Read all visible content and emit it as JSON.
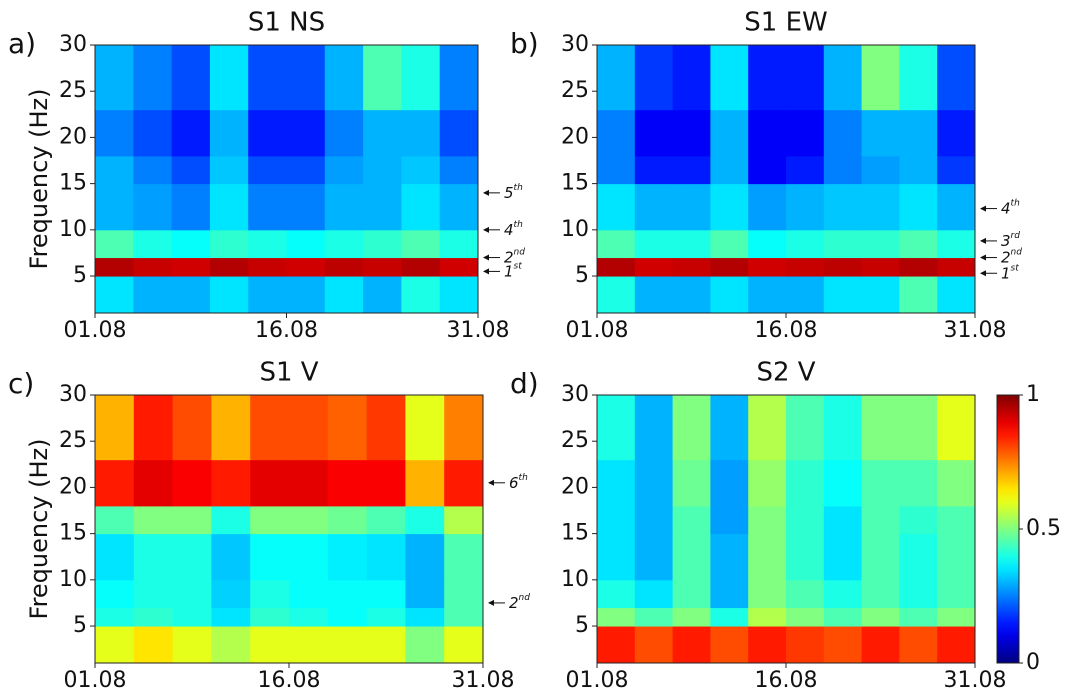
{
  "chart_data": [
    {
      "type": "heatmap",
      "label": "a)",
      "title": "S1 NS",
      "ylabel": "Frequency (Hz)",
      "xlim": [
        1,
        31
      ],
      "xticks": [
        {
          "value": 1,
          "label": "01.08"
        },
        {
          "value": 16,
          "label": "16.08"
        },
        {
          "value": 31,
          "label": "31.08"
        }
      ],
      "ylim": [
        1,
        30
      ],
      "yticks": [
        5,
        10,
        15,
        20,
        25,
        30
      ],
      "clim": [
        0,
        1
      ],
      "xbins": [
        1,
        4,
        7,
        10,
        13,
        16,
        19,
        22,
        25,
        28,
        31
      ],
      "ybins": [
        1,
        5,
        7,
        10,
        15,
        18,
        23,
        30
      ],
      "values": [
        [
          0.35,
          0.3,
          0.3,
          0.35,
          0.3,
          0.3,
          0.35,
          0.3,
          0.4,
          0.35
        ],
        [
          0.95,
          0.93,
          0.92,
          0.95,
          0.93,
          0.92,
          0.94,
          0.93,
          0.95,
          0.92
        ],
        [
          0.45,
          0.4,
          0.38,
          0.42,
          0.4,
          0.38,
          0.4,
          0.42,
          0.45,
          0.4
        ],
        [
          0.3,
          0.28,
          0.25,
          0.35,
          0.25,
          0.25,
          0.3,
          0.3,
          0.35,
          0.3
        ],
        [
          0.3,
          0.25,
          0.2,
          0.32,
          0.2,
          0.2,
          0.28,
          0.3,
          0.32,
          0.25
        ],
        [
          0.25,
          0.2,
          0.15,
          0.3,
          0.15,
          0.15,
          0.25,
          0.3,
          0.3,
          0.2
        ],
        [
          0.3,
          0.25,
          0.2,
          0.35,
          0.2,
          0.2,
          0.3,
          0.45,
          0.4,
          0.25
        ]
      ],
      "annotations": [
        {
          "text": "5",
          "sup": "th",
          "y": 14
        },
        {
          "text": "4",
          "sup": "th",
          "y": 10
        },
        {
          "text": "2",
          "sup": "nd",
          "y": 7
        },
        {
          "text": "1",
          "sup": "st",
          "y": 5.5
        }
      ]
    },
    {
      "type": "heatmap",
      "label": "b)",
      "title": "S1 EW",
      "xlim": [
        1,
        31
      ],
      "xticks": [
        {
          "value": 1,
          "label": "01.08"
        },
        {
          "value": 16,
          "label": "16.08"
        },
        {
          "value": 31,
          "label": "31.08"
        }
      ],
      "ylim": [
        1,
        30
      ],
      "yticks": [
        5,
        10,
        15,
        20,
        25,
        30
      ],
      "clim": [
        0,
        1
      ],
      "xbins": [
        1,
        4,
        7,
        10,
        13,
        16,
        19,
        22,
        25,
        28,
        31
      ],
      "ybins": [
        1,
        5,
        7,
        10,
        15,
        18,
        23,
        30
      ],
      "values": [
        [
          0.4,
          0.3,
          0.3,
          0.35,
          0.3,
          0.3,
          0.35,
          0.35,
          0.45,
          0.35
        ],
        [
          0.95,
          0.92,
          0.93,
          0.95,
          0.92,
          0.93,
          0.94,
          0.93,
          0.95,
          0.93
        ],
        [
          0.45,
          0.4,
          0.4,
          0.45,
          0.38,
          0.4,
          0.42,
          0.42,
          0.45,
          0.4
        ],
        [
          0.35,
          0.3,
          0.3,
          0.35,
          0.28,
          0.3,
          0.32,
          0.32,
          0.35,
          0.3
        ],
        [
          0.25,
          0.15,
          0.15,
          0.3,
          0.12,
          0.15,
          0.25,
          0.28,
          0.3,
          0.18
        ],
        [
          0.25,
          0.12,
          0.12,
          0.3,
          0.12,
          0.12,
          0.25,
          0.3,
          0.3,
          0.15
        ],
        [
          0.3,
          0.18,
          0.15,
          0.35,
          0.15,
          0.15,
          0.3,
          0.5,
          0.4,
          0.2
        ]
      ],
      "annotations": [
        {
          "text": "4",
          "sup": "th",
          "y": 12.3
        },
        {
          "text": "3",
          "sup": "rd",
          "y": 8.8
        },
        {
          "text": "2",
          "sup": "nd",
          "y": 7
        },
        {
          "text": "1",
          "sup": "st",
          "y": 5.3
        }
      ]
    },
    {
      "type": "heatmap",
      "label": "c)",
      "title": "S1 V",
      "ylabel": "Frequency (Hz)",
      "xlim": [
        1,
        31
      ],
      "xticks": [
        {
          "value": 1,
          "label": "01.08"
        },
        {
          "value": 16,
          "label": "16.08"
        },
        {
          "value": 31,
          "label": "31.08"
        }
      ],
      "ylim": [
        1,
        30
      ],
      "yticks": [
        5,
        10,
        15,
        20,
        25,
        30
      ],
      "clim": [
        0,
        1
      ],
      "xbins": [
        1,
        4,
        7,
        10,
        13,
        16,
        19,
        22,
        25,
        28,
        31
      ],
      "ybins": [
        1,
        5,
        7,
        10,
        15,
        18,
        23,
        30
      ],
      "values": [
        [
          0.6,
          0.65,
          0.6,
          0.55,
          0.6,
          0.6,
          0.6,
          0.6,
          0.5,
          0.6
        ],
        [
          0.4,
          0.42,
          0.4,
          0.35,
          0.42,
          0.4,
          0.38,
          0.4,
          0.35,
          0.45
        ],
        [
          0.38,
          0.4,
          0.4,
          0.33,
          0.4,
          0.38,
          0.38,
          0.38,
          0.3,
          0.45
        ],
        [
          0.35,
          0.4,
          0.4,
          0.32,
          0.38,
          0.38,
          0.36,
          0.35,
          0.3,
          0.45
        ],
        [
          0.45,
          0.5,
          0.5,
          0.4,
          0.5,
          0.5,
          0.48,
          0.45,
          0.4,
          0.55
        ],
        [
          0.85,
          0.9,
          0.88,
          0.85,
          0.9,
          0.9,
          0.88,
          0.88,
          0.7,
          0.85
        ],
        [
          0.7,
          0.85,
          0.8,
          0.7,
          0.8,
          0.8,
          0.78,
          0.82,
          0.6,
          0.75
        ]
      ],
      "annotations": [
        {
          "text": "6",
          "sup": "th",
          "y": 20.5
        },
        {
          "text": "2",
          "sup": "nd",
          "y": 7.5
        }
      ]
    },
    {
      "type": "heatmap",
      "label": "d)",
      "title": "S2 V",
      "xlim": [
        1,
        31
      ],
      "xticks": [
        {
          "value": 1,
          "label": "01.08"
        },
        {
          "value": 16,
          "label": "16.08"
        },
        {
          "value": 31,
          "label": "31.08"
        }
      ],
      "ylim": [
        1,
        30
      ],
      "yticks": [
        5,
        10,
        15,
        20,
        25,
        30
      ],
      "clim": [
        0,
        1
      ],
      "xbins": [
        1,
        4,
        7,
        10,
        13,
        16,
        19,
        22,
        25,
        28,
        31
      ],
      "ybins": [
        1,
        5,
        7,
        10,
        15,
        18,
        23,
        30
      ],
      "values": [
        [
          0.85,
          0.8,
          0.85,
          0.8,
          0.85,
          0.82,
          0.8,
          0.85,
          0.8,
          0.85
        ],
        [
          0.5,
          0.45,
          0.5,
          0.4,
          0.55,
          0.5,
          0.45,
          0.5,
          0.45,
          0.5
        ],
        [
          0.4,
          0.35,
          0.45,
          0.3,
          0.5,
          0.45,
          0.4,
          0.45,
          0.4,
          0.45
        ],
        [
          0.35,
          0.3,
          0.45,
          0.3,
          0.5,
          0.42,
          0.35,
          0.45,
          0.4,
          0.45
        ],
        [
          0.35,
          0.3,
          0.45,
          0.28,
          0.5,
          0.42,
          0.35,
          0.45,
          0.42,
          0.45
        ],
        [
          0.35,
          0.3,
          0.48,
          0.28,
          0.52,
          0.42,
          0.38,
          0.45,
          0.45,
          0.5
        ],
        [
          0.4,
          0.3,
          0.5,
          0.3,
          0.55,
          0.45,
          0.4,
          0.5,
          0.5,
          0.6
        ]
      ],
      "colorbar_ticks": [
        0,
        0.5,
        1
      ]
    }
  ]
}
